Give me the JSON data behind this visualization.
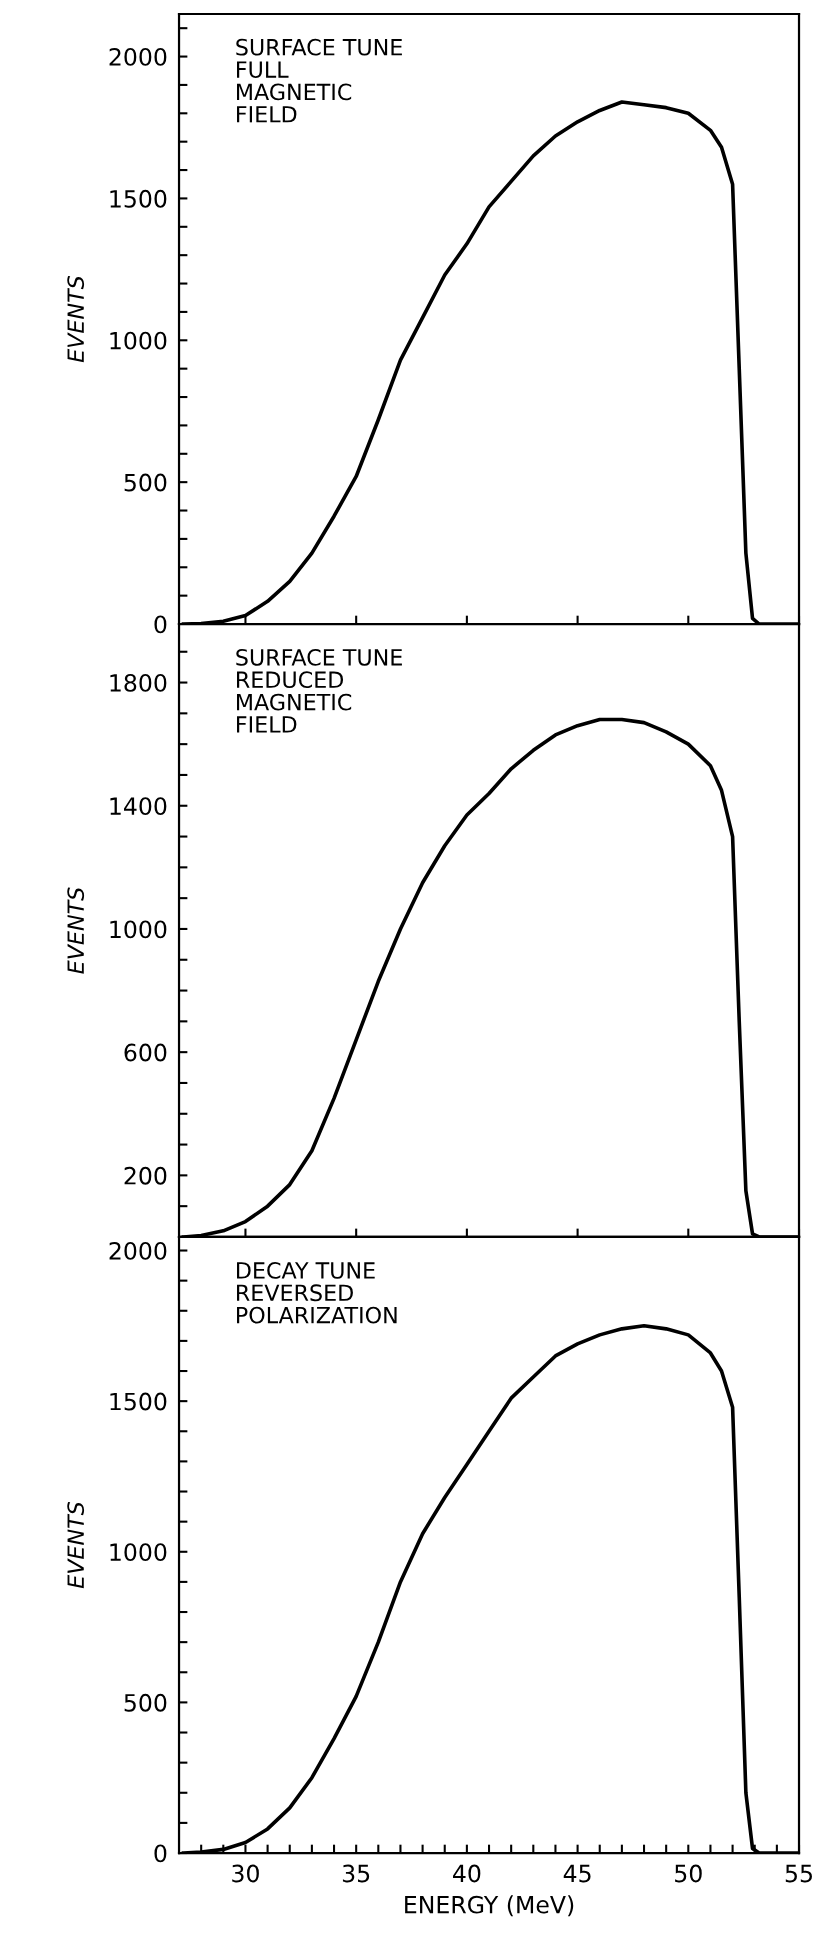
{
  "chart_data": [
    {
      "type": "line",
      "ylabel": "EVENTS",
      "annotations": [
        "SURFACE TUNE\nFULL\nMAGNETIC\nFIELD"
      ],
      "tick_labels": "y",
      "grid": false,
      "legend": false,
      "marker": "none",
      "line_style": "solid",
      "xlim": [
        27,
        55
      ],
      "xticks": [
        30,
        35,
        40,
        45,
        50,
        55
      ],
      "ylim": [
        0,
        2150
      ],
      "yticks": [
        0,
        {
          "value": 100,
          "label": null
        },
        {
          "value": 200,
          "label": null
        },
        {
          "value": 300,
          "label": null
        },
        {
          "value": 400,
          "label": null
        },
        500,
        {
          "value": 600,
          "label": null
        },
        {
          "value": 700,
          "label": null
        },
        {
          "value": 800,
          "label": null
        },
        {
          "value": 900,
          "label": null
        },
        1000,
        {
          "value": 1100,
          "label": null
        },
        {
          "value": 1200,
          "label": null
        },
        {
          "value": 1300,
          "label": null
        },
        {
          "value": 1400,
          "label": null
        },
        1500,
        {
          "value": 1600,
          "label": null
        },
        {
          "value": 1700,
          "label": null
        },
        {
          "value": 1800,
          "label": null
        },
        {
          "value": 1900,
          "label": null
        },
        2000,
        {
          "value": 2100,
          "label": null
        }
      ],
      "x": [
        27.2,
        28,
        29,
        30,
        31,
        32,
        33,
        34,
        35,
        36,
        37,
        38,
        39,
        40,
        41,
        42,
        43,
        44,
        45,
        46,
        47,
        48,
        49,
        50,
        51,
        51.5,
        52,
        52.3,
        52.6,
        52.9,
        53.2,
        55
      ],
      "series": [
        {
          "color": "#000000",
          "values": [
            0,
            2,
            10,
            30,
            80,
            150,
            250,
            380,
            520,
            720,
            930,
            1080,
            1230,
            1340,
            1470,
            1560,
            1650,
            1720,
            1770,
            1810,
            1840,
            1830,
            1820,
            1800,
            1740,
            1680,
            1550,
            900,
            250,
            20,
            0,
            0
          ]
        }
      ]
    },
    {
      "type": "line",
      "ylabel": "EVENTS",
      "annotations": [
        "SURFACE TUNE\nREDUCED\nMAGNETIC\nFIELD"
      ],
      "tick_labels": "y",
      "grid": false,
      "legend": false,
      "marker": "none",
      "line_style": "solid",
      "xlim": [
        27,
        55
      ],
      "xticks": [
        30,
        35,
        40,
        45,
        50,
        55
      ],
      "ylim": [
        0,
        1990
      ],
      "yticks": [
        {
          "value": 100,
          "label": null
        },
        200,
        {
          "value": 300,
          "label": null
        },
        {
          "value": 400,
          "label": null
        },
        {
          "value": 500,
          "label": null
        },
        600,
        {
          "value": 700,
          "label": null
        },
        {
          "value": 800,
          "label": null
        },
        {
          "value": 900,
          "label": null
        },
        1000,
        {
          "value": 1100,
          "label": null
        },
        {
          "value": 1200,
          "label": null
        },
        {
          "value": 1300,
          "label": null
        },
        1400,
        {
          "value": 1500,
          "label": null
        },
        {
          "value": 1600,
          "label": null
        },
        {
          "value": 1700,
          "label": null
        },
        1800,
        {
          "value": 1900,
          "label": null
        }
      ],
      "x": [
        27.2,
        28,
        29,
        30,
        31,
        32,
        33,
        34,
        35,
        36,
        37,
        38,
        39,
        40,
        41,
        42,
        43,
        44,
        45,
        46,
        47,
        48,
        49,
        50,
        51,
        51.5,
        52,
        52.3,
        52.6,
        52.9,
        53.2,
        55
      ],
      "series": [
        {
          "color": "#000000",
          "values": [
            0,
            5,
            20,
            50,
            100,
            170,
            280,
            450,
            640,
            830,
            1000,
            1150,
            1270,
            1370,
            1440,
            1520,
            1580,
            1630,
            1660,
            1680,
            1680,
            1670,
            1640,
            1600,
            1530,
            1450,
            1300,
            700,
            150,
            10,
            0,
            0
          ]
        }
      ]
    },
    {
      "type": "line",
      "ylabel": "EVENTS",
      "xlabel": "ENERGY (MeV)",
      "annotations": [
        "DECAY TUNE\nREVERSED\nPOLARIZATION"
      ],
      "grid": false,
      "legend": false,
      "marker": "none",
      "line_style": "solid",
      "xlim": [
        27,
        55
      ],
      "xticks": [
        {
          "value": 28,
          "label": null
        },
        {
          "value": 29,
          "label": null
        },
        30,
        {
          "value": 31,
          "label": null
        },
        {
          "value": 32,
          "label": null
        },
        {
          "value": 33,
          "label": null
        },
        {
          "value": 34,
          "label": null
        },
        35,
        {
          "value": 36,
          "label": null
        },
        {
          "value": 37,
          "label": null
        },
        {
          "value": 38,
          "label": null
        },
        {
          "value": 39,
          "label": null
        },
        40,
        {
          "value": 41,
          "label": null
        },
        {
          "value": 42,
          "label": null
        },
        {
          "value": 43,
          "label": null
        },
        {
          "value": 44,
          "label": null
        },
        45,
        {
          "value": 46,
          "label": null
        },
        {
          "value": 47,
          "label": null
        },
        {
          "value": 48,
          "label": null
        },
        {
          "value": 49,
          "label": null
        },
        50,
        {
          "value": 51,
          "label": null
        },
        {
          "value": 52,
          "label": null
        },
        {
          "value": 53,
          "label": null
        },
        {
          "value": 54,
          "label": null
        },
        55
      ],
      "ylim": [
        0,
        2045
      ],
      "yticks": [
        0,
        {
          "value": 100,
          "label": null
        },
        {
          "value": 200,
          "label": null
        },
        {
          "value": 300,
          "label": null
        },
        {
          "value": 400,
          "label": null
        },
        500,
        {
          "value": 600,
          "label": null
        },
        {
          "value": 700,
          "label": null
        },
        {
          "value": 800,
          "label": null
        },
        {
          "value": 900,
          "label": null
        },
        1000,
        {
          "value": 1100,
          "label": null
        },
        {
          "value": 1200,
          "label": null
        },
        {
          "value": 1300,
          "label": null
        },
        {
          "value": 1400,
          "label": null
        },
        1500,
        {
          "value": 1600,
          "label": null
        },
        {
          "value": 1700,
          "label": null
        },
        {
          "value": 1800,
          "label": null
        },
        {
          "value": 1900,
          "label": null
        },
        2000
      ],
      "x": [
        27.2,
        28,
        29,
        30,
        31,
        32,
        33,
        34,
        35,
        36,
        37,
        38,
        39,
        40,
        41,
        42,
        43,
        44,
        45,
        46,
        47,
        48,
        49,
        50,
        51,
        51.5,
        52,
        52.3,
        52.6,
        52.9,
        53.2,
        55
      ],
      "series": [
        {
          "color": "#000000",
          "values": [
            0,
            3,
            12,
            35,
            80,
            150,
            250,
            380,
            520,
            700,
            900,
            1060,
            1180,
            1290,
            1400,
            1510,
            1580,
            1650,
            1690,
            1720,
            1740,
            1750,
            1740,
            1720,
            1660,
            1600,
            1480,
            850,
            200,
            15,
            0,
            0
          ]
        }
      ]
    }
  ]
}
